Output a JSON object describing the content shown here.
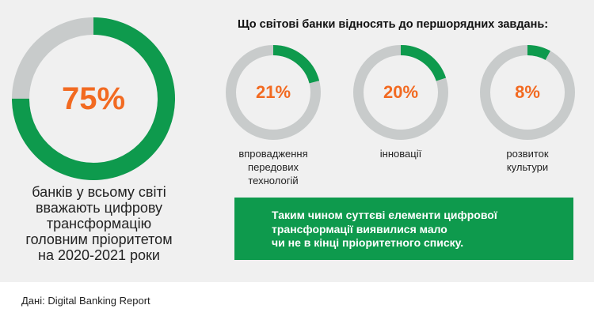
{
  "chart_data": [
    {
      "type": "pie",
      "values": [
        75,
        25
      ],
      "value_label": "75%",
      "description": [
        "банків у всьому світі",
        "вважають цифрову",
        "трансформацію",
        "головним пріоритетом",
        "на 2020-2021 роки"
      ]
    },
    {
      "type": "pie",
      "title": "Що світові банки відносять до першорядних завдань:",
      "categories": [
        "впровадження передових технологій",
        "інновації",
        "розвиток культури"
      ],
      "values": [
        21,
        20,
        8
      ],
      "value_labels": [
        "21%",
        "20%",
        "8%"
      ],
      "category_lines": [
        [
          "впровадження",
          "передових",
          "технологій"
        ],
        [
          "інновації"
        ],
        [
          "розвиток",
          "культури"
        ]
      ]
    }
  ],
  "callout": {
    "lines": [
      "Таким чином суттєві елементи цифрової",
      "трансформації виявилися мало",
      "чи не в кінці пріоритетного списку."
    ]
  },
  "source": "Дані: Digital Banking Report",
  "colors": {
    "filled": "#0e9a4d",
    "empty": "#c8cbcb",
    "accent": "#f26a21",
    "panel": "#f0f0f0"
  }
}
